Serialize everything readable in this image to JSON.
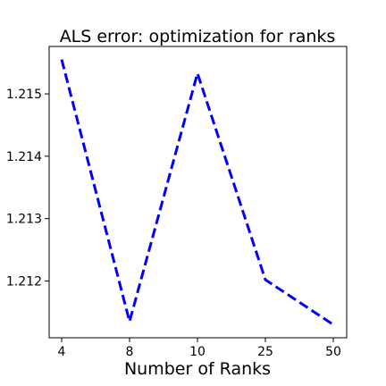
{
  "chart_data": {
    "type": "line",
    "title": "ALS error: optimization for ranks",
    "xlabel": "Number of Ranks",
    "ylabel": "",
    "categories": [
      "4",
      "8",
      "10",
      "25",
      "50"
    ],
    "series": [
      {
        "values": [
          1.21555,
          1.21135,
          1.21533,
          1.21202,
          1.2113
        ],
        "color": "#0000ff",
        "line_style": "dashed"
      }
    ],
    "y_ticks": [
      "1.212",
      "1.213",
      "1.214",
      "1.215"
    ],
    "y_tick_values": [
      1.212,
      1.213,
      1.214,
      1.215
    ],
    "ylim": [
      1.21109,
      1.21576
    ],
    "grid": false,
    "legend": false
  }
}
